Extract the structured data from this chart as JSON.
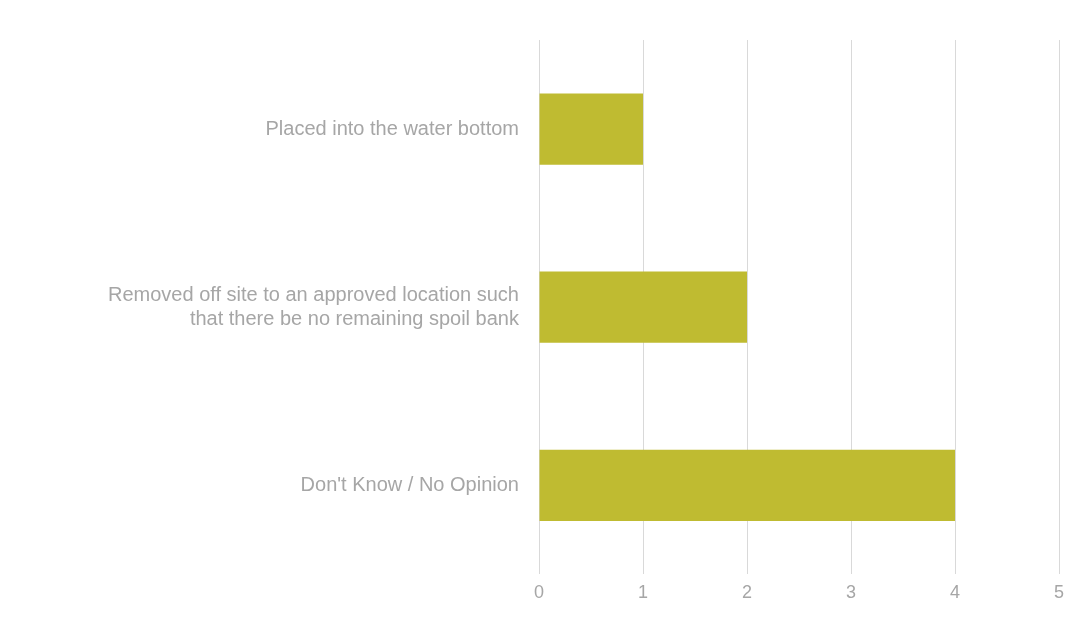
{
  "chart_data": {
    "type": "bar",
    "orientation": "horizontal",
    "categories": [
      "Placed into the water bottom",
      "Removed off site to an approved location such that there be no remaining spoil bank",
      "Don't Know / No Opinion"
    ],
    "values": [
      1,
      2,
      4
    ],
    "color": "#bfbb31",
    "xlim": [
      0,
      5
    ],
    "xticks": [
      0,
      1,
      2,
      3,
      4,
      5
    ],
    "grid": "x",
    "legend": false
  }
}
